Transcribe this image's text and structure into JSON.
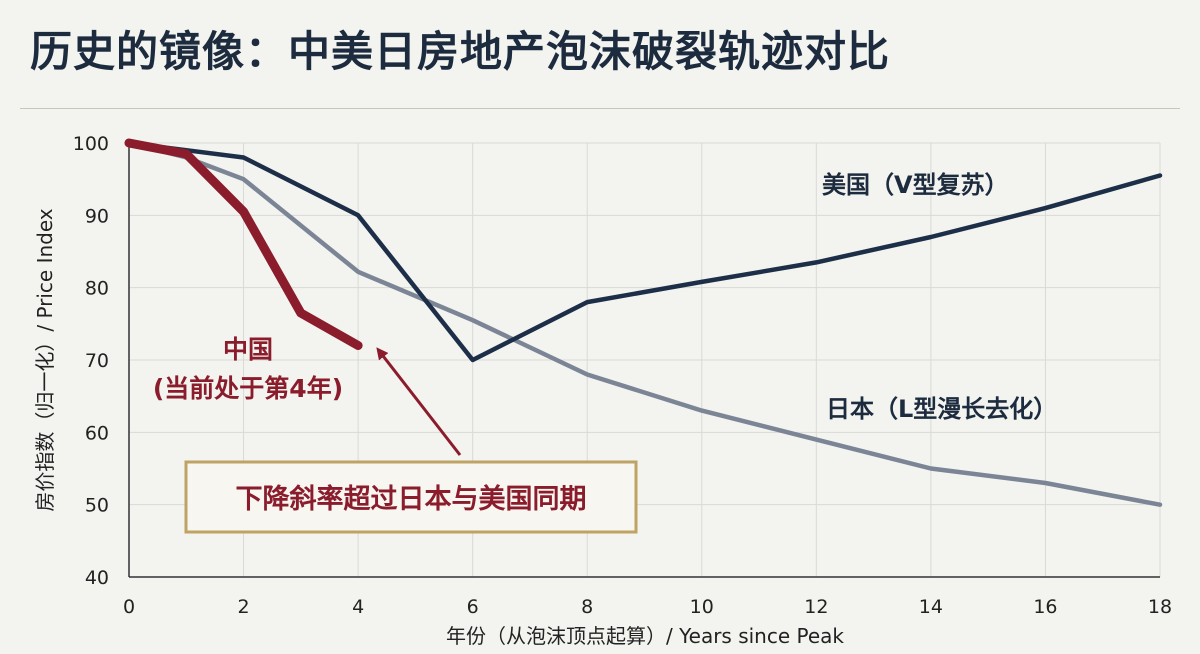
{
  "title": "历史的镜像：中美日房地产泡沫破裂轨迹对比",
  "colors": {
    "background": "#f3f3ef",
    "china": "#8a1c2c",
    "usa": "#1d2f48",
    "japan": "#7b8595",
    "grid": "#d9d9d5",
    "callout_border": "#bfa365"
  },
  "chart_data": {
    "type": "line",
    "xlabel": "年份（从泡沫顶点起算）/ Years since Peak",
    "ylabel": "房价指数（归一化）/ Price Index",
    "xlim": [
      0,
      18
    ],
    "ylim": [
      40,
      100
    ],
    "xticks": [
      0,
      2,
      4,
      6,
      8,
      10,
      12,
      14,
      16,
      18
    ],
    "yticks": [
      40,
      50,
      60,
      70,
      80,
      90,
      100
    ],
    "grid": true,
    "series": [
      {
        "key": "japan",
        "x": [
          0,
          1,
          2,
          4,
          6,
          8,
          10,
          12,
          14,
          16,
          18
        ],
        "values": [
          100,
          98,
          95,
          82.2,
          75.5,
          68,
          63,
          59,
          55,
          53,
          50
        ]
      },
      {
        "key": "usa",
        "x": [
          0,
          1,
          2,
          4,
          6,
          8,
          10,
          12,
          14,
          16,
          18
        ],
        "values": [
          100,
          99,
          98,
          90,
          70,
          78,
          80.8,
          83.5,
          87,
          91,
          95.5
        ]
      },
      {
        "key": "china",
        "x": [
          0,
          1,
          2,
          3,
          4
        ],
        "values": [
          100,
          98.5,
          90.5,
          76.5,
          72
        ]
      }
    ],
    "annotations": {
      "usa_label": "美国（V型复苏）",
      "japan_label": "日本（L型漫长去化）",
      "china_label_line1": "中国",
      "china_label_line2": "(当前处于第4年)",
      "callout": "下降斜率超过日本与美国同期"
    }
  }
}
